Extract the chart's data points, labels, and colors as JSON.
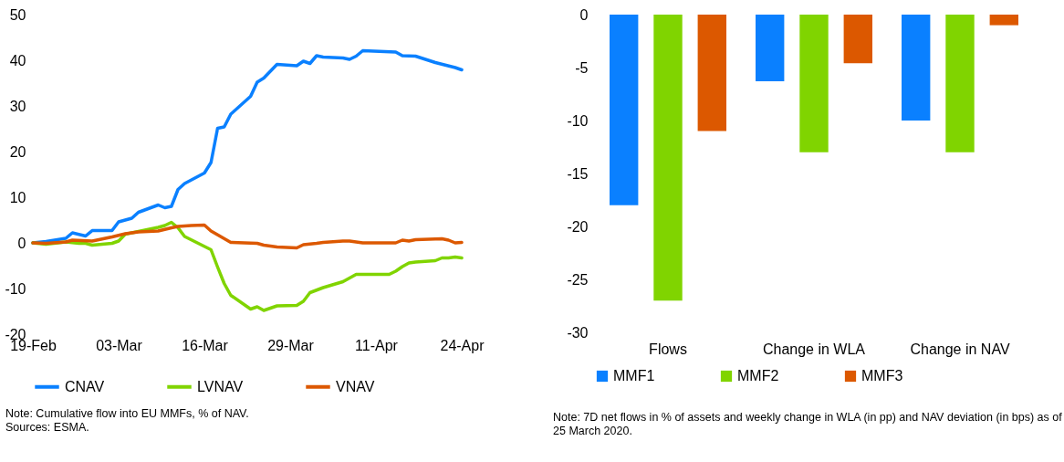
{
  "chart_data": [
    {
      "type": "line",
      "legend": "bottom",
      "grid": false,
      "ylim": [
        -20,
        50
      ],
      "yticks": [
        -20,
        -10,
        0,
        10,
        20,
        30,
        40,
        50
      ],
      "xlim": [
        "2020-02-19",
        "2020-04-24"
      ],
      "xticks": [
        {
          "value": "2020-02-19",
          "label": "19-Feb"
        },
        {
          "value": "2020-03-03",
          "label": "03-Mar"
        },
        {
          "value": "2020-03-16",
          "label": "16-Mar"
        },
        {
          "value": "2020-03-29",
          "label": "29-Mar"
        },
        {
          "value": "2020-04-11",
          "label": "11-Apr"
        },
        {
          "value": "2020-04-24",
          "label": "24-Apr"
        }
      ],
      "series": [
        {
          "name": "CNAV",
          "color": "#0a80ff",
          "x": [
            "2020-02-19",
            "2020-02-21",
            "2020-02-24",
            "2020-02-25",
            "2020-02-27",
            "2020-02-28",
            "2020-03-02",
            "2020-03-03",
            "2020-03-05",
            "2020-03-06",
            "2020-03-09",
            "2020-03-10",
            "2020-03-11",
            "2020-03-12",
            "2020-03-13",
            "2020-03-16",
            "2020-03-17",
            "2020-03-18",
            "2020-03-19",
            "2020-03-20",
            "2020-03-23",
            "2020-03-24",
            "2020-03-25",
            "2020-03-27",
            "2020-03-30",
            "2020-03-31",
            "2020-04-01",
            "2020-04-02",
            "2020-04-03",
            "2020-04-06",
            "2020-04-07",
            "2020-04-08",
            "2020-04-09",
            "2020-04-14",
            "2020-04-15",
            "2020-04-17",
            "2020-04-20",
            "2020-04-23",
            "2020-04-24"
          ],
          "values": [
            0,
            0.3,
            1,
            2.2,
            1.5,
            2.7,
            2.7,
            4.6,
            5.4,
            6.7,
            8.3,
            7.7,
            8,
            11.7,
            13,
            15.3,
            17.6,
            25.1,
            25.4,
            28.2,
            32.1,
            35.2,
            36.1,
            39.1,
            38.8,
            39.8,
            39.3,
            41,
            40.7,
            40.5,
            40.2,
            40.9,
            42.1,
            41.8,
            41,
            40.9,
            39.5,
            38.4,
            37.9
          ]
        },
        {
          "name": "LVNAV",
          "color": "#80d400",
          "x": [
            "2020-02-19",
            "2020-02-21",
            "2020-02-24",
            "2020-02-26",
            "2020-02-27",
            "2020-02-28",
            "2020-03-02",
            "2020-03-03",
            "2020-03-04",
            "2020-03-09",
            "2020-03-10",
            "2020-03-11",
            "2020-03-12",
            "2020-03-13",
            "2020-03-17",
            "2020-03-18",
            "2020-03-19",
            "2020-03-20",
            "2020-03-23",
            "2020-03-24",
            "2020-03-25",
            "2020-03-27",
            "2020-03-30",
            "2020-03-31",
            "2020-04-01",
            "2020-04-03",
            "2020-04-06",
            "2020-04-08",
            "2020-04-09",
            "2020-04-13",
            "2020-04-14",
            "2020-04-15",
            "2020-04-16",
            "2020-04-17",
            "2020-04-20",
            "2020-04-21",
            "2020-04-22",
            "2020-04-23",
            "2020-04-24"
          ],
          "values": [
            0,
            -0.3,
            0.2,
            -0.1,
            -0.1,
            -0.5,
            -0.1,
            0.4,
            1.9,
            3.4,
            3.8,
            4.5,
            3.3,
            1.4,
            -1.5,
            -5.3,
            -8.9,
            -11.5,
            -14.5,
            -14,
            -14.8,
            -13.8,
            -13.7,
            -12.8,
            -10.9,
            -9.8,
            -8.5,
            -6.9,
            -6.9,
            -6.9,
            -6.2,
            -5.2,
            -4.4,
            -4.2,
            -3.9,
            -3.3,
            -3.3,
            -3.1,
            -3.3
          ]
        },
        {
          "name": "VNAV",
          "color": "#dc5800",
          "x": [
            "2020-02-19",
            "2020-02-21",
            "2020-02-24",
            "2020-02-25",
            "2020-02-28",
            "2020-03-02",
            "2020-03-04",
            "2020-03-06",
            "2020-03-09",
            "2020-03-11",
            "2020-03-12",
            "2020-03-14",
            "2020-03-16",
            "2020-03-17",
            "2020-03-20",
            "2020-03-24",
            "2020-03-25",
            "2020-03-27",
            "2020-03-30",
            "2020-03-31",
            "2020-04-02",
            "2020-04-03",
            "2020-04-06",
            "2020-04-07",
            "2020-04-09",
            "2020-04-14",
            "2020-04-15",
            "2020-04-16",
            "2020-04-17",
            "2020-04-21",
            "2020-04-22",
            "2020-04-23",
            "2020-04-24"
          ],
          "values": [
            0,
            -0.1,
            0.2,
            0.6,
            0.4,
            1.3,
            2,
            2.4,
            2.6,
            3.3,
            3.6,
            3.8,
            3.9,
            2.6,
            0.1,
            -0.1,
            -0.5,
            -0.9,
            -1.1,
            -0.4,
            -0.1,
            0.1,
            0.4,
            0.4,
            0,
            0,
            0.6,
            0.4,
            0.7,
            0.9,
            0.6,
            0,
            0.1
          ]
        }
      ],
      "annotations": [
        "Note: Cumulative flow into EU MMFs, % of NAV.",
        "Sources: ESMA."
      ]
    },
    {
      "type": "bar",
      "legend": "bottom",
      "grid": false,
      "categories": [
        "Flows",
        "Change in WLA",
        "Change in NAV"
      ],
      "ylim": [
        -30,
        0
      ],
      "yticks": [
        -30,
        -25,
        -20,
        -15,
        -10,
        -5,
        0
      ],
      "series": [
        {
          "name": "MMF1",
          "color": "#0a80ff",
          "values": [
            -18,
            -6.3,
            -10
          ]
        },
        {
          "name": "MMF2",
          "color": "#80d400",
          "values": [
            -27,
            -13,
            -13
          ]
        },
        {
          "name": "MMF3",
          "color": "#dc5800",
          "values": [
            -11,
            -4.6,
            -1
          ]
        }
      ],
      "annotations": [
        "Note: 7D net flows in % of assets and weekly change in WLA (in pp) and NAV deviation (in bps) as of 25 March 2020."
      ]
    }
  ]
}
